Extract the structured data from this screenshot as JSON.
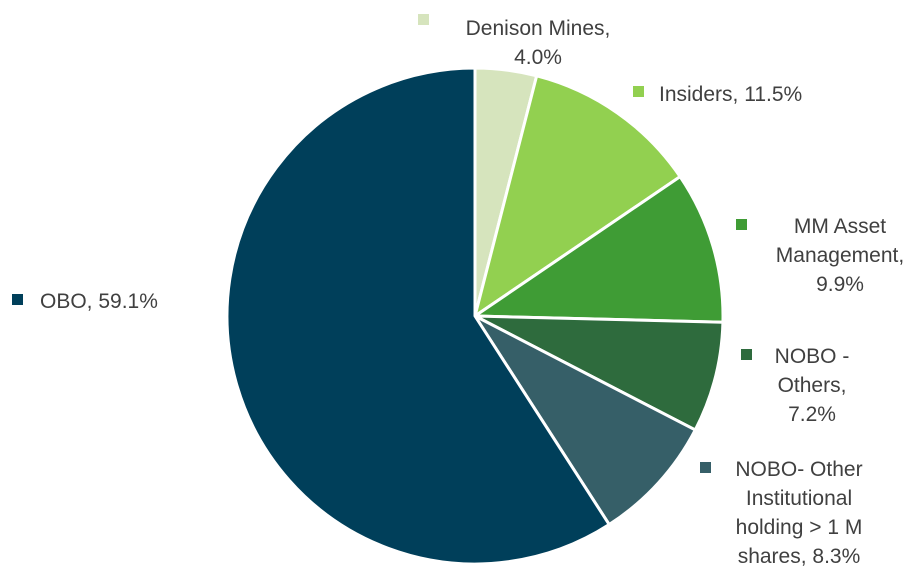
{
  "chart_data": {
    "type": "pie",
    "title": "",
    "slices": [
      {
        "name": "Denison Mines",
        "value": 4.0,
        "color": "#d6e4bd",
        "label_lines": [
          "Denison Mines,",
          "4.0%"
        ]
      },
      {
        "name": "Insiders",
        "value": 11.5,
        "color": "#92d050",
        "label_lines": [
          "Insiders, 11.5%"
        ]
      },
      {
        "name": "MM Asset Management",
        "value": 9.9,
        "color": "#3f9c35",
        "label_lines": [
          "MM Asset",
          "Management,",
          "9.9%"
        ]
      },
      {
        "name": "NOBO - Others",
        "value": 7.2,
        "color": "#2e6b3d",
        "label_lines": [
          "NOBO -",
          "Others,",
          "7.2%"
        ]
      },
      {
        "name": "NOBO- Other Institutional holding > 1 M shares",
        "value": 8.3,
        "color": "#365f68",
        "label_lines": [
          "NOBO- Other",
          "Institutional",
          "holding > 1 M",
          "shares, 8.3%"
        ]
      },
      {
        "name": "OBO",
        "value": 59.1,
        "color": "#003f5a",
        "label_lines": [
          "OBO, 59.1%"
        ]
      }
    ],
    "start_angle_deg": 0,
    "direction": "clockwise",
    "legend": "labels beside slices"
  }
}
